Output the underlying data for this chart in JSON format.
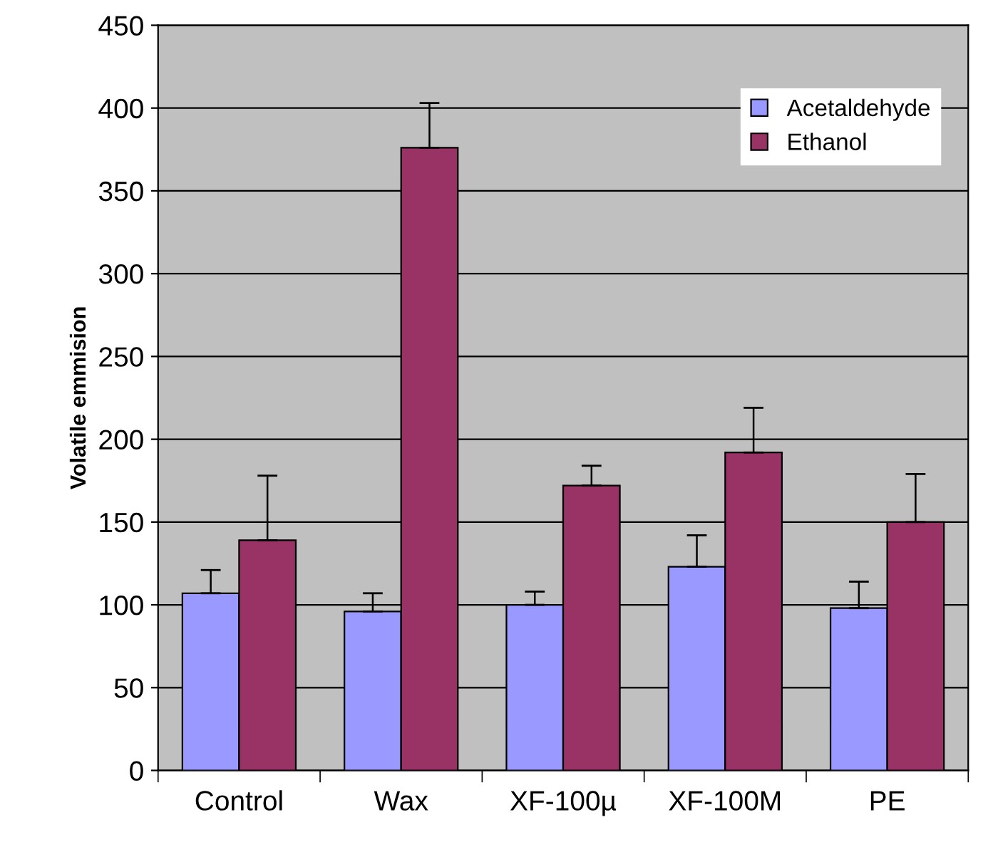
{
  "chart_data": {
    "type": "bar",
    "ylabel": "Volatile emmision",
    "categories": [
      "Control",
      "Wax",
      "XF-100µ",
      "XF-100M",
      "PE"
    ],
    "series": [
      {
        "name": "Acetaldehyde",
        "color": "#9999ff",
        "values": [
          107,
          96,
          100,
          123,
          98
        ],
        "errors": [
          [
            107,
            121
          ],
          [
            96,
            107
          ],
          [
            100,
            108
          ],
          [
            123,
            142
          ],
          [
            98,
            114
          ]
        ]
      },
      {
        "name": "Ethanol",
        "color": "#993366",
        "values": [
          139,
          376,
          172,
          192,
          150
        ],
        "errors": [
          [
            139,
            178
          ],
          [
            376,
            403
          ],
          [
            172,
            184
          ],
          [
            192,
            219
          ],
          [
            150,
            179
          ]
        ]
      }
    ],
    "ylim": [
      0,
      450
    ],
    "yticks": [
      0,
      50,
      100,
      150,
      200,
      250,
      300,
      350,
      400,
      450
    ],
    "grid": "y",
    "legend": "top right"
  }
}
